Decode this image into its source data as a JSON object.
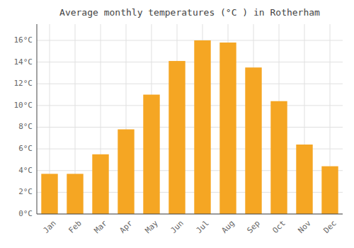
{
  "chart_data": {
    "type": "bar",
    "title": "Average monthly temperatures (°C ) in Rotherham",
    "categories": [
      "Jan",
      "Feb",
      "Mar",
      "Apr",
      "May",
      "Jun",
      "Jul",
      "Aug",
      "Sep",
      "Oct",
      "Nov",
      "Dec"
    ],
    "values": [
      3.7,
      3.7,
      5.5,
      7.8,
      11.0,
      14.1,
      16.0,
      15.8,
      13.5,
      10.4,
      6.4,
      4.4
    ],
    "color": "#F5A623",
    "ylim": [
      0,
      17.5
    ],
    "yticks": [
      {
        "value": 0,
        "label": "0°C"
      },
      {
        "value": 2,
        "label": "2°C"
      },
      {
        "value": 4,
        "label": "4°C"
      },
      {
        "value": 6,
        "label": "6°C"
      },
      {
        "value": 8,
        "label": "8°C"
      },
      {
        "value": 10,
        "label": "10°C"
      },
      {
        "value": 12,
        "label": "12°C"
      },
      {
        "value": 14,
        "label": "14°C"
      },
      {
        "value": 16,
        "label": "16°C"
      }
    ],
    "grid": true
  }
}
